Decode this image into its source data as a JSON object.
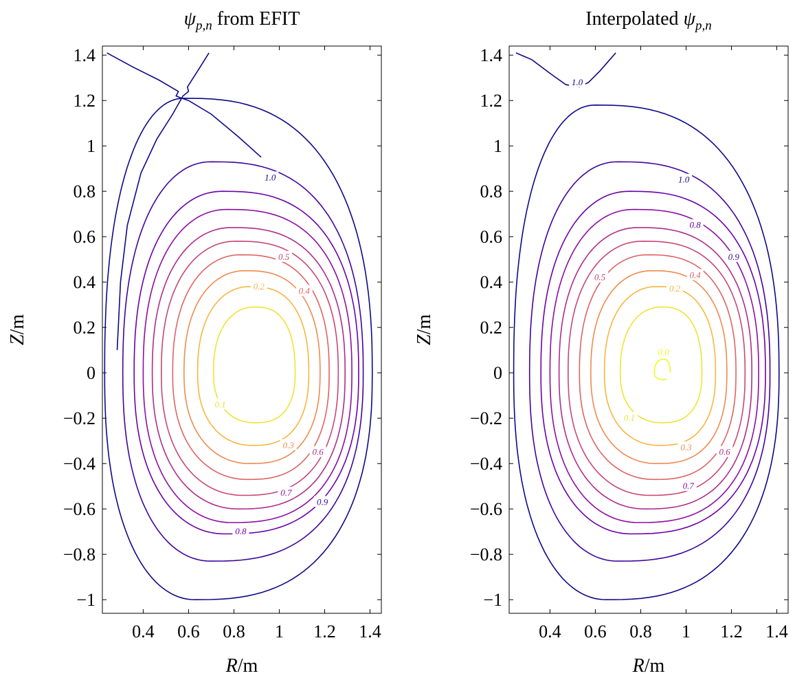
{
  "chart_data": [
    {
      "type": "contour",
      "title": {
        "symbol": "ψ",
        "subscript": "p,n",
        "suffix": " from EFIT"
      },
      "xlabel": {
        "var": "R",
        "unit": "/m"
      },
      "ylabel": {
        "var": "Z",
        "unit": "/m"
      },
      "xlim": [
        0.22,
        1.45
      ],
      "ylim": [
        -1.06,
        1.44
      ],
      "xticks": [
        {
          "value": 0.4,
          "label": "0.4"
        },
        {
          "value": 0.6,
          "label": "0.6"
        },
        {
          "value": 0.8,
          "label": "0.8"
        },
        {
          "value": 1.0,
          "label": "1"
        },
        {
          "value": 1.2,
          "label": "1.2"
        },
        {
          "value": 1.4,
          "label": "1.4"
        }
      ],
      "yticks": [
        {
          "value": 1.4,
          "label": "1.4"
        },
        {
          "value": 1.2,
          "label": "1.2"
        },
        {
          "value": 1.0,
          "label": "1"
        },
        {
          "value": 0.8,
          "label": "0.8"
        },
        {
          "value": 0.6,
          "label": "0.6"
        },
        {
          "value": 0.4,
          "label": "0.4"
        },
        {
          "value": 0.2,
          "label": "0.2"
        },
        {
          "value": 0.0,
          "label": "0"
        },
        {
          "value": -0.2,
          "label": "−0.2"
        },
        {
          "value": -0.4,
          "label": "−0.4"
        },
        {
          "value": -0.6,
          "label": "−0.6"
        },
        {
          "value": -0.8,
          "label": "−0.8"
        },
        {
          "value": -1.0,
          "label": "−1"
        }
      ],
      "grid": false,
      "contour_levels": [
        {
          "level": 0.1,
          "color": "#f0e232",
          "Rmin": 0.71,
          "Rmax": 1.07,
          "Zmin": -0.22,
          "Zmax": 0.29,
          "Rtop": 0.89,
          "Rbot": 0.89
        },
        {
          "level": 0.2,
          "color": "#f8b53d",
          "Rmin": 0.64,
          "Rmax": 1.13,
          "Zmin": -0.32,
          "Zmax": 0.38,
          "Rtop": 0.87,
          "Rbot": 0.88
        },
        {
          "level": 0.3,
          "color": "#ef8a4d",
          "Rmin": 0.58,
          "Rmax": 1.18,
          "Zmin": -0.4,
          "Zmax": 0.45,
          "Rtop": 0.85,
          "Rbot": 0.87
        },
        {
          "level": 0.4,
          "color": "#df6263",
          "Rmin": 0.53,
          "Rmax": 1.22,
          "Zmin": -0.47,
          "Zmax": 0.52,
          "Rtop": 0.83,
          "Rbot": 0.86
        },
        {
          "level": 0.5,
          "color": "#c84675",
          "Rmin": 0.48,
          "Rmax": 1.26,
          "Zmin": -0.54,
          "Zmax": 0.58,
          "Rtop": 0.81,
          "Rbot": 0.84
        },
        {
          "level": 0.6,
          "color": "#ad2b8b",
          "Rmin": 0.44,
          "Rmax": 1.29,
          "Zmin": -0.6,
          "Zmax": 0.64,
          "Rtop": 0.79,
          "Rbot": 0.82
        },
        {
          "level": 0.7,
          "color": "#8c0da2",
          "Rmin": 0.4,
          "Rmax": 1.32,
          "Zmin": -0.66,
          "Zmax": 0.72,
          "Rtop": 0.77,
          "Rbot": 0.79
        },
        {
          "level": 0.8,
          "color": "#6a00a8",
          "Rmin": 0.36,
          "Rmax": 1.35,
          "Zmin": -0.71,
          "Zmax": 0.8,
          "Rtop": 0.75,
          "Rbot": 0.76
        },
        {
          "level": 0.9,
          "color": "#3e049c",
          "Rmin": 0.31,
          "Rmax": 1.37,
          "Zmin": -0.83,
          "Zmax": 0.93,
          "Rtop": 0.7,
          "Rbot": 0.7
        },
        {
          "level": 1.0,
          "color": "#0d0887",
          "Rmin": 0.23,
          "Rmax": 1.41,
          "Zmin": -1.0,
          "Zmax": 1.21,
          "Rtop": 0.58,
          "Rbot": 0.63
        }
      ],
      "labels": [
        {
          "text": "1.0",
          "R": 0.96,
          "Z": 0.86
        },
        {
          "text": "0.5",
          "R": 1.02,
          "Z": 0.51
        },
        {
          "text": "0.2",
          "R": 0.91,
          "Z": 0.38
        },
        {
          "text": "0.4",
          "R": 1.11,
          "Z": 0.36
        },
        {
          "text": "0.1",
          "R": 0.74,
          "Z": -0.14
        },
        {
          "text": "0.3",
          "R": 1.04,
          "Z": -0.32
        },
        {
          "text": "0.6",
          "R": 1.17,
          "Z": -0.35
        },
        {
          "text": "0.7",
          "R": 1.03,
          "Z": -0.53
        },
        {
          "text": "0.9",
          "R": 1.19,
          "Z": -0.57
        },
        {
          "text": "0.8",
          "R": 0.83,
          "Z": -0.7
        }
      ]
    },
    {
      "type": "contour",
      "title": {
        "symbol": "ψ",
        "subscript": "p,n",
        "prefix": "Interpolated "
      },
      "xlabel": {
        "var": "R",
        "unit": "/m"
      },
      "ylabel": {
        "var": "Z",
        "unit": "/m"
      },
      "xlim": [
        0.22,
        1.45
      ],
      "ylim": [
        -1.06,
        1.44
      ],
      "xticks": [
        {
          "value": 0.4,
          "label": "0.4"
        },
        {
          "value": 0.6,
          "label": "0.6"
        },
        {
          "value": 0.8,
          "label": "0.8"
        },
        {
          "value": 1.0,
          "label": "1"
        },
        {
          "value": 1.2,
          "label": "1.2"
        },
        {
          "value": 1.4,
          "label": "1.4"
        }
      ],
      "yticks": [
        {
          "value": 1.4,
          "label": "1.4"
        },
        {
          "value": 1.2,
          "label": "1.2"
        },
        {
          "value": 1.0,
          "label": "1"
        },
        {
          "value": 0.8,
          "label": "0.8"
        },
        {
          "value": 0.6,
          "label": "0.6"
        },
        {
          "value": 0.4,
          "label": "0.4"
        },
        {
          "value": 0.2,
          "label": "0.2"
        },
        {
          "value": 0.0,
          "label": "0"
        },
        {
          "value": -0.2,
          "label": "−0.2"
        },
        {
          "value": -0.4,
          "label": "−0.4"
        },
        {
          "value": -0.6,
          "label": "−0.6"
        },
        {
          "value": -0.8,
          "label": "−0.8"
        },
        {
          "value": -1.0,
          "label": "−1"
        }
      ],
      "grid": false,
      "contour_levels": [
        {
          "level": 0.0,
          "color": "#f0f921",
          "Rmin": 0.86,
          "Rmax": 0.93,
          "Zmin": -0.03,
          "Zmax": 0.06,
          "Rtop": 0.9,
          "Rbot": 0.9,
          "open": true
        },
        {
          "level": 0.1,
          "color": "#f0e232",
          "Rmin": 0.71,
          "Rmax": 1.07,
          "Zmin": -0.22,
          "Zmax": 0.29,
          "Rtop": 0.89,
          "Rbot": 0.89
        },
        {
          "level": 0.2,
          "color": "#f8b53d",
          "Rmin": 0.64,
          "Rmax": 1.13,
          "Zmin": -0.32,
          "Zmax": 0.38,
          "Rtop": 0.87,
          "Rbot": 0.88
        },
        {
          "level": 0.3,
          "color": "#ef8a4d",
          "Rmin": 0.58,
          "Rmax": 1.18,
          "Zmin": -0.4,
          "Zmax": 0.45,
          "Rtop": 0.85,
          "Rbot": 0.87
        },
        {
          "level": 0.4,
          "color": "#df6263",
          "Rmin": 0.53,
          "Rmax": 1.22,
          "Zmin": -0.47,
          "Zmax": 0.52,
          "Rtop": 0.83,
          "Rbot": 0.86
        },
        {
          "level": 0.5,
          "color": "#c84675",
          "Rmin": 0.48,
          "Rmax": 1.26,
          "Zmin": -0.54,
          "Zmax": 0.58,
          "Rtop": 0.81,
          "Rbot": 0.84
        },
        {
          "level": 0.6,
          "color": "#ad2b8b",
          "Rmin": 0.44,
          "Rmax": 1.29,
          "Zmin": -0.6,
          "Zmax": 0.64,
          "Rtop": 0.79,
          "Rbot": 0.82
        },
        {
          "level": 0.7,
          "color": "#8c0da2",
          "Rmin": 0.4,
          "Rmax": 1.32,
          "Zmin": -0.66,
          "Zmax": 0.72,
          "Rtop": 0.77,
          "Rbot": 0.79
        },
        {
          "level": 0.8,
          "color": "#6a00a8",
          "Rmin": 0.36,
          "Rmax": 1.35,
          "Zmin": -0.71,
          "Zmax": 0.8,
          "Rtop": 0.75,
          "Rbot": 0.76
        },
        {
          "level": 0.9,
          "color": "#3e049c",
          "Rmin": 0.31,
          "Rmax": 1.37,
          "Zmin": -0.83,
          "Zmax": 0.93,
          "Rtop": 0.7,
          "Rbot": 0.7
        },
        {
          "level": 1.0,
          "color": "#0d0887",
          "Rmin": 0.24,
          "Rmax": 1.41,
          "Zmin": -1.0,
          "Zmax": 1.18,
          "Rtop": 0.6,
          "Rbot": 0.65
        }
      ],
      "labels": [
        {
          "text": "1.0",
          "R": 0.52,
          "Z": 1.28
        },
        {
          "text": "1.0",
          "R": 0.99,
          "Z": 0.85
        },
        {
          "text": "0.8",
          "R": 1.04,
          "Z": 0.65
        },
        {
          "text": "0.9",
          "R": 1.21,
          "Z": 0.51
        },
        {
          "text": "0.5",
          "R": 0.62,
          "Z": 0.42
        },
        {
          "text": "0.4",
          "R": 1.04,
          "Z": 0.43
        },
        {
          "text": "0.2",
          "R": 0.95,
          "Z": 0.37
        },
        {
          "text": "0.0",
          "R": 0.9,
          "Z": 0.09
        },
        {
          "text": "0.1",
          "R": 0.75,
          "Z": -0.2
        },
        {
          "text": "0.3",
          "R": 1.0,
          "Z": -0.33
        },
        {
          "text": "0.6",
          "R": 1.17,
          "Z": -0.35
        },
        {
          "text": "0.7",
          "R": 1.01,
          "Z": -0.5
        }
      ]
    }
  ]
}
